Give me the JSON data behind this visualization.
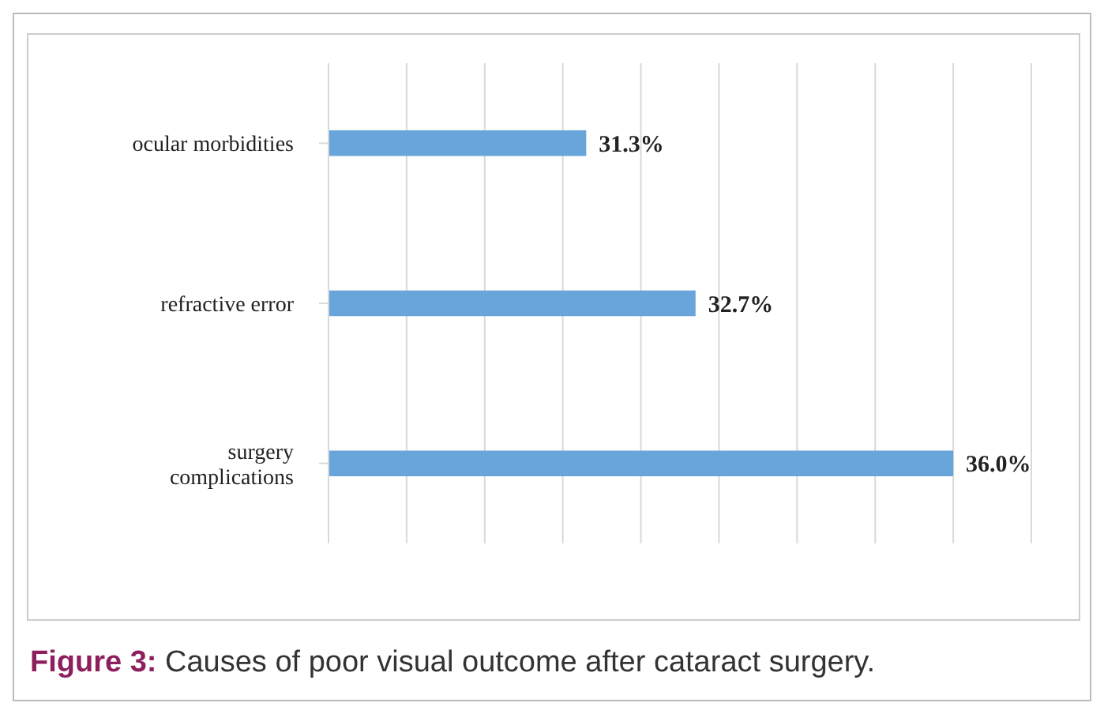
{
  "chart_data": {
    "type": "bar",
    "orientation": "horizontal",
    "categories": [
      "ocular morbidities",
      "refractive error",
      "surgery complications"
    ],
    "values": [
      31.3,
      32.7,
      36.0
    ],
    "color": "#68a5db",
    "value_labels": [
      "31.3%",
      "32.7%",
      "36.0%"
    ],
    "xlim": [
      28,
      37
    ],
    "xticks": [
      {
        "value": 28,
        "label": null
      },
      {
        "value": 29,
        "label": null
      },
      {
        "value": 30,
        "label": null
      },
      {
        "value": 31,
        "label": null
      },
      {
        "value": 32,
        "label": null
      },
      {
        "value": 33,
        "label": null
      },
      {
        "value": 34,
        "label": null
      },
      {
        "value": 35,
        "label": null
      },
      {
        "value": 36,
        "label": null
      },
      {
        "value": 37,
        "label": null
      }
    ],
    "grid": "x",
    "tick_labels": "y",
    "legend": false,
    "annotations": [
      "Figure 3: Causes of poor visual outcome after cataract surgery."
    ]
  }
}
